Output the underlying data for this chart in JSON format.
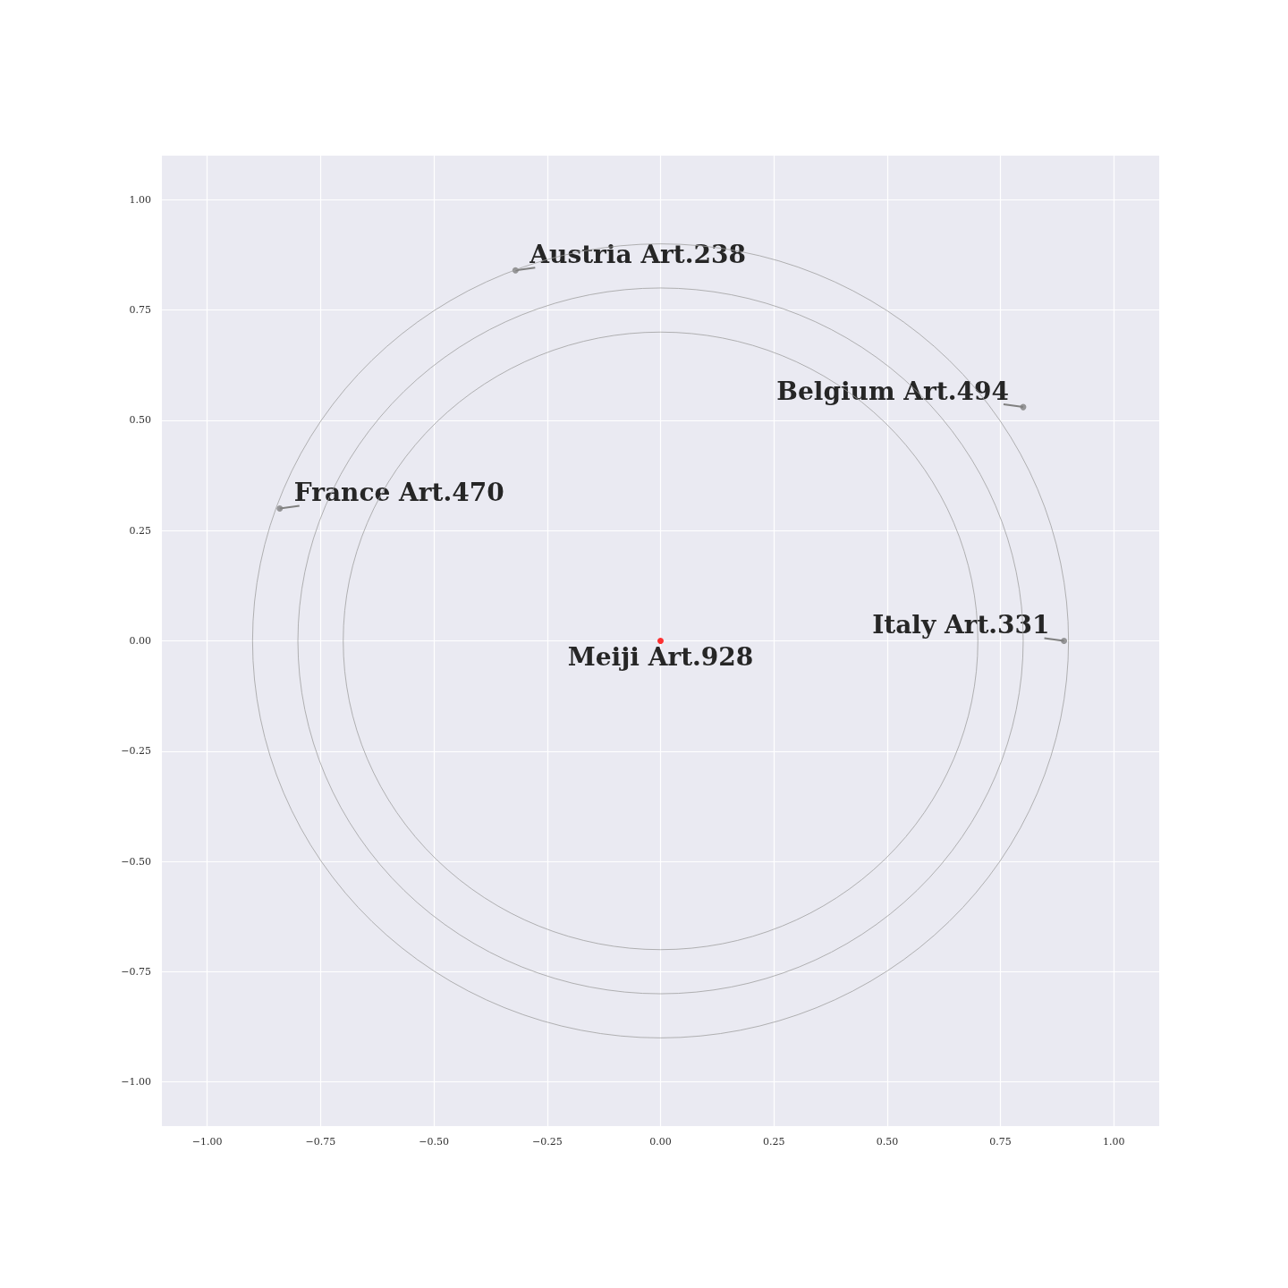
{
  "chart_data": {
    "type": "scatter",
    "xlim": [
      -1.1,
      1.1
    ],
    "ylim": [
      -1.1,
      1.1
    ],
    "xticks": [
      {
        "value": -1,
        "label": "−1.00"
      },
      {
        "value": -0.75,
        "label": "−0.75"
      },
      {
        "value": -0.5,
        "label": "−0.50"
      },
      {
        "value": -0.25,
        "label": "−0.25"
      },
      {
        "value": 0,
        "label": "0.00"
      },
      {
        "value": 0.25,
        "label": "0.25"
      },
      {
        "value": 0.5,
        "label": "0.50"
      },
      {
        "value": 0.75,
        "label": "0.75"
      },
      {
        "value": 1,
        "label": "1.00"
      }
    ],
    "yticks": [
      {
        "value": -1,
        "label": "−1.00"
      },
      {
        "value": -0.75,
        "label": "−0.75"
      },
      {
        "value": -0.5,
        "label": "−0.50"
      },
      {
        "value": -0.25,
        "label": "−0.25"
      },
      {
        "value": 0,
        "label": "0.00"
      },
      {
        "value": 0.25,
        "label": "0.25"
      },
      {
        "value": 0.5,
        "label": "0.50"
      },
      {
        "value": 0.75,
        "label": "0.75"
      },
      {
        "value": 1,
        "label": "1.00"
      }
    ],
    "grid": true,
    "annotations": [
      {
        "text": "Meiji Art.928",
        "x": 0,
        "y": 0
      },
      {
        "text": "Austria Art.238",
        "x": -0.32,
        "y": 0.84
      },
      {
        "text": "Belgium Art.494",
        "x": 0.8,
        "y": 0.53
      },
      {
        "text": "France Art.470",
        "x": -0.84,
        "y": 0.3
      },
      {
        "text": "Italy Art.331",
        "x": 0.89,
        "y": 0
      }
    ],
    "series": [
      {
        "marker": "circle",
        "x": [
          0,
          -0.32,
          0.8,
          -0.84,
          0.89
        ],
        "values": [
          0,
          0.84,
          0.53,
          0.3,
          0
        ],
        "colors": [
          "#ff0000",
          "#808080",
          "#808080",
          "#808080",
          "#808080"
        ]
      }
    ]
  }
}
